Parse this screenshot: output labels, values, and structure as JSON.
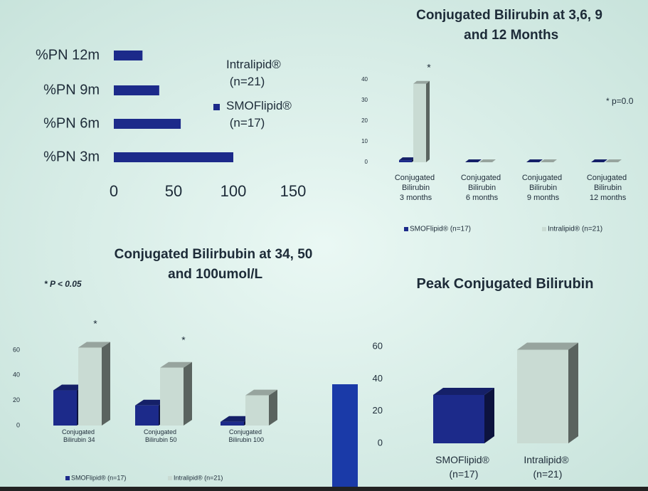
{
  "chart_data": [
    {
      "type": "bar",
      "orientation": "horizontal",
      "categories": [
        "%PN 12m",
        "%PN 9m",
        "%PN 6m",
        "%PN 3m"
      ],
      "series": [
        {
          "name": "Intralipid® (n=21)",
          "color": "#d6ede8",
          "values": [
            null,
            null,
            null,
            null
          ]
        },
        {
          "name": "SMOFlipid® (n=17)",
          "color": "#1c2a8a",
          "values": [
            24,
            38,
            56,
            100
          ]
        }
      ],
      "xlim": [
        0,
        150
      ],
      "xticks": [
        0,
        50,
        100,
        150
      ]
    },
    {
      "type": "bar",
      "3d": true,
      "title": "Conjugated Bilirubin at 3,6, 9 and 12 Months",
      "categories": [
        "Conjugated Bilirubin 3 months",
        "Conjugated Bilirubin 6 months",
        "Conjugated Bilirubin 9 months",
        "Conjugated Bilirubin 12 months"
      ],
      "series": [
        {
          "name": "SMOFlipid® (n=17)",
          "color": "#1c2a8a",
          "values": [
            1,
            0,
            0,
            0
          ]
        },
        {
          "name": "Intralipid® (n=21)",
          "color": "#c9dbd3",
          "values": [
            38,
            0,
            0,
            0
          ]
        }
      ],
      "ylim": [
        0,
        40
      ],
      "yticks": [
        0,
        10,
        20,
        30,
        40
      ],
      "annotations": [
        "*",
        "* p=0.0"
      ]
    },
    {
      "type": "bar",
      "3d": true,
      "title": "Conjugated Bilirbubin at 34, 50 and 100umol/L",
      "categories": [
        "Conjugated Bilirubin 34",
        "Conjugated Bilirubin 50",
        "Conjugated Bilirubin 100"
      ],
      "series": [
        {
          "name": "SMOFlipid® (n=17)",
          "color": "#1c2a8a",
          "values": [
            28,
            16,
            3
          ]
        },
        {
          "name": "Intralipid® (n=21)",
          "color": "#c9dbd3",
          "values": [
            62,
            46,
            24
          ]
        }
      ],
      "ylim": [
        0,
        60
      ],
      "yticks": [
        0,
        20,
        40,
        60
      ],
      "annotations": [
        "* P < 0.05",
        "*",
        "*"
      ]
    },
    {
      "type": "bar",
      "3d": true,
      "title": "Peak Conjugated Bilirubin",
      "categories": [
        "SMOFlipid® (n=17)",
        "Intralipid® (n=21)"
      ],
      "values": [
        30,
        58
      ],
      "colors": [
        "#1c2a8a",
        "#c9dbd3"
      ],
      "ylim": [
        0,
        60
      ],
      "yticks": [
        0,
        20,
        40,
        60
      ]
    }
  ]
}
